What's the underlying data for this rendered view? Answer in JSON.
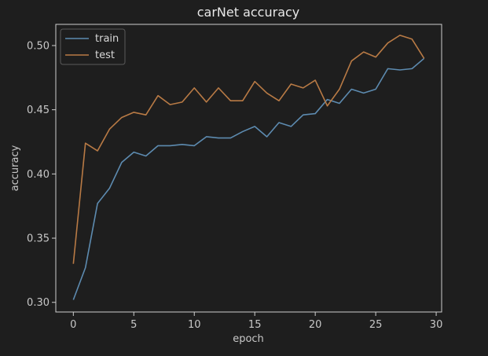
{
  "chart_data": {
    "type": "line",
    "title": "carNet accuracy",
    "xlabel": "epoch",
    "ylabel": "accuracy",
    "xlim": [
      -1.45,
      30.45
    ],
    "ylim": [
      0.2925,
      0.5165
    ],
    "xticks": [
      0,
      5,
      10,
      15,
      20,
      25,
      30
    ],
    "yticks": [
      0.3,
      0.35,
      0.4,
      0.45,
      0.5
    ],
    "ytick_labels": [
      "0.30",
      "0.35",
      "0.40",
      "0.45",
      "0.50"
    ],
    "grid": false,
    "legend_position": "top-left",
    "x": [
      0,
      1,
      2,
      3,
      4,
      5,
      6,
      7,
      8,
      9,
      10,
      11,
      12,
      13,
      14,
      15,
      16,
      17,
      18,
      19,
      20,
      21,
      22,
      23,
      24,
      25,
      26,
      27,
      28,
      29
    ],
    "series": [
      {
        "name": "train",
        "color": "#5d8bb0",
        "values": [
          0.302,
          0.327,
          0.377,
          0.389,
          0.409,
          0.417,
          0.414,
          0.422,
          0.422,
          0.423,
          0.422,
          0.429,
          0.428,
          0.428,
          0.433,
          0.437,
          0.429,
          0.44,
          0.437,
          0.446,
          0.447,
          0.458,
          0.455,
          0.466,
          0.463,
          0.466,
          0.482,
          0.481,
          0.482,
          0.49
        ]
      },
      {
        "name": "test",
        "color": "#b87a45",
        "values": [
          0.33,
          0.424,
          0.418,
          0.435,
          0.444,
          0.448,
          0.446,
          0.461,
          0.454,
          0.456,
          0.467,
          0.456,
          0.467,
          0.457,
          0.457,
          0.472,
          0.463,
          0.457,
          0.47,
          0.467,
          0.473,
          0.453,
          0.466,
          0.488,
          0.495,
          0.491,
          0.502,
          0.508,
          0.505,
          0.49
        ]
      }
    ]
  }
}
